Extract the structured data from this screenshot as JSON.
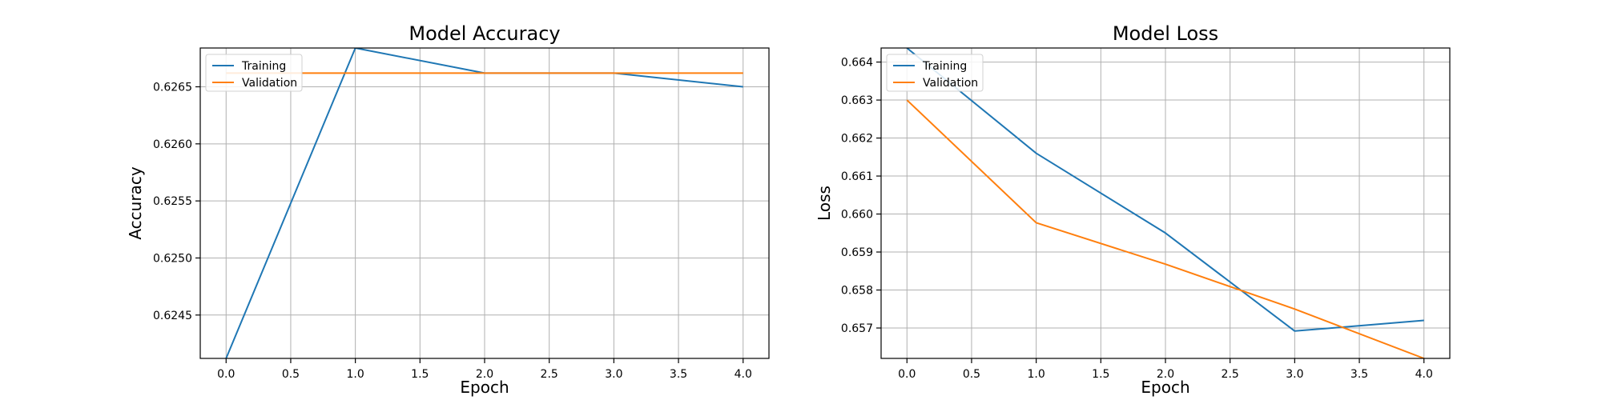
{
  "chart_data": [
    {
      "type": "line",
      "title": "Model Accuracy",
      "xlabel": "Epoch",
      "ylabel": "Accuracy",
      "x": [
        0,
        1,
        2,
        3,
        4
      ],
      "xlim": [
        -0.2,
        4.2
      ],
      "ylim": [
        0.62412,
        0.62684
      ],
      "xticks": [
        0.0,
        0.5,
        1.0,
        1.5,
        2.0,
        2.5,
        3.0,
        3.5,
        4.0
      ],
      "xtick_labels": [
        "0.0",
        "0.5",
        "1.0",
        "1.5",
        "2.0",
        "2.5",
        "3.0",
        "3.5",
        "4.0"
      ],
      "yticks": [
        0.6245,
        0.625,
        0.6255,
        0.626,
        0.6265
      ],
      "ytick_labels": [
        "0.6245",
        "0.6250",
        "0.6255",
        "0.6260",
        "0.6265"
      ],
      "grid": true,
      "legend_position": "upper-left",
      "series": [
        {
          "name": "Training",
          "color": "#1f77b4",
          "values": [
            0.62412,
            0.62684,
            0.62662,
            0.62662,
            0.6265
          ]
        },
        {
          "name": "Validation",
          "color": "#ff7f0e",
          "values": [
            0.62662,
            0.62662,
            0.62662,
            0.62662,
            0.62662
          ]
        }
      ]
    },
    {
      "type": "line",
      "title": "Model Loss",
      "xlabel": "Epoch",
      "ylabel": "Loss",
      "x": [
        0,
        1,
        2,
        3,
        4
      ],
      "xlim": [
        -0.2,
        4.2
      ],
      "ylim": [
        0.6562,
        0.66437
      ],
      "xticks": [
        0.0,
        0.5,
        1.0,
        1.5,
        2.0,
        2.5,
        3.0,
        3.5,
        4.0
      ],
      "xtick_labels": [
        "0.0",
        "0.5",
        "1.0",
        "1.5",
        "2.0",
        "2.5",
        "3.0",
        "3.5",
        "4.0"
      ],
      "yticks": [
        0.657,
        0.658,
        0.659,
        0.66,
        0.661,
        0.662,
        0.663,
        0.664
      ],
      "ytick_labels": [
        "0.657",
        "0.658",
        "0.659",
        "0.660",
        "0.661",
        "0.662",
        "0.663",
        "0.664"
      ],
      "grid": true,
      "legend_position": "upper-left",
      "series": [
        {
          "name": "Training",
          "color": "#1f77b4",
          "values": [
            0.66437,
            0.6616,
            0.6595,
            0.65692,
            0.6572
          ]
        },
        {
          "name": "Validation",
          "color": "#ff7f0e",
          "values": [
            0.663,
            0.65977,
            0.65868,
            0.6575,
            0.6562
          ]
        }
      ]
    }
  ]
}
